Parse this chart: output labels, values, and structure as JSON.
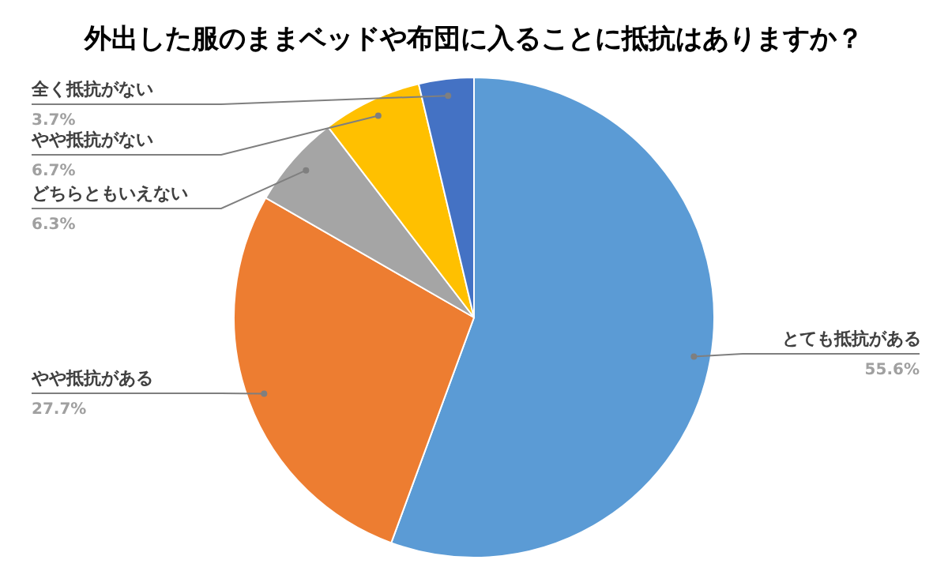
{
  "chart_data": {
    "type": "pie",
    "title": "外出した服のままベッドや布団に入ることに抵抗はありますか？",
    "categories": [
      "とても抵抗がある",
      "やや抵抗がある",
      "どちらともいえない",
      "やや抵抗がない",
      "全く抵抗がない"
    ],
    "values": [
      55.6,
      27.7,
      6.3,
      6.7,
      3.7
    ],
    "colors": [
      "#5b9bd5",
      "#ed7d31",
      "#a5a5a5",
      "#ffc000",
      "#4472c4"
    ],
    "value_labels": [
      "55.6%",
      "27.7%",
      "6.3%",
      "6.7%",
      "3.7%"
    ]
  }
}
